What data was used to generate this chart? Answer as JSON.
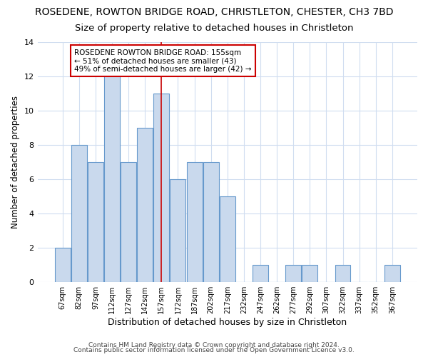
{
  "title1": "ROSEDENE, ROWTON BRIDGE ROAD, CHRISTLETON, CHESTER, CH3 7BD",
  "title2": "Size of property relative to detached houses in Christleton",
  "xlabel": "Distribution of detached houses by size in Christleton",
  "ylabel": "Number of detached properties",
  "categories": [
    "67sqm",
    "82sqm",
    "97sqm",
    "112sqm",
    "127sqm",
    "142sqm",
    "157sqm",
    "172sqm",
    "187sqm",
    "202sqm",
    "217sqm",
    "232sqm",
    "247sqm",
    "262sqm",
    "277sqm",
    "292sqm",
    "307sqm",
    "322sqm",
    "337sqm",
    "352sqm",
    "367sqm"
  ],
  "values": [
    2,
    8,
    7,
    13,
    7,
    9,
    11,
    6,
    7,
    7,
    5,
    0,
    1,
    0,
    1,
    1,
    0,
    1,
    0,
    0,
    1
  ],
  "bar_color": "#c9d9ed",
  "bar_edge_color": "#6699cc",
  "subject_bar_index": 6,
  "red_line_x": 6,
  "annotation_title": "ROSEDENE ROWTON BRIDGE ROAD: 155sqm",
  "annotation_line2": "← 51% of detached houses are smaller (43)",
  "annotation_line3": "49% of semi-detached houses are larger (42) →",
  "ylim": [
    0,
    14
  ],
  "yticks": [
    0,
    2,
    4,
    6,
    8,
    10,
    12,
    14
  ],
  "footnote1": "Contains HM Land Registry data © Crown copyright and database right 2024.",
  "footnote2": "Contains public sector information licensed under the Open Government Licence v3.0.",
  "bg_color": "#ffffff",
  "plot_bg_color": "#ffffff",
  "grid_color": "#d0ddf0",
  "title1_fontsize": 10,
  "title2_fontsize": 9.5,
  "annotation_box_color": "#ffffff",
  "annotation_edge_color": "#cc0000",
  "red_line_color": "#cc0000"
}
